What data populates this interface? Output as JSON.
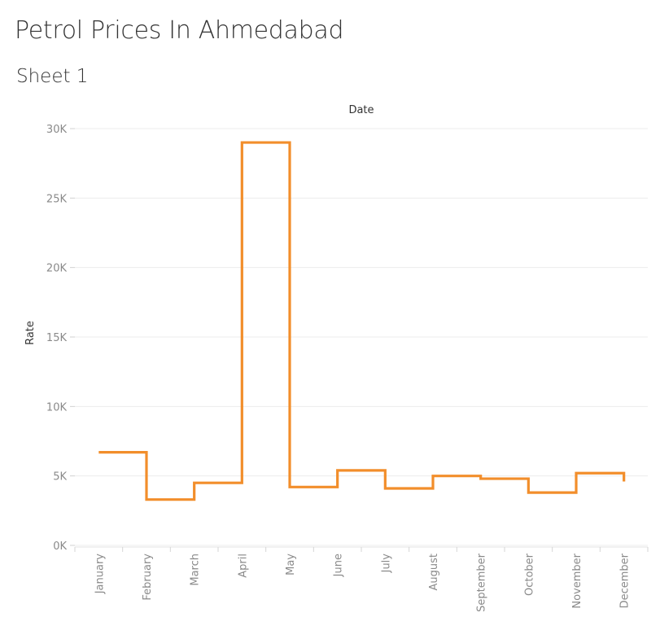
{
  "page": {
    "title": "Petrol Prices In Ahmedabad",
    "sheet": "Sheet 1"
  },
  "chart_data": {
    "type": "line",
    "line_style": "step",
    "categories": [
      "January",
      "February",
      "March",
      "April",
      "May",
      "June",
      "July",
      "August",
      "September",
      "October",
      "November",
      "December"
    ],
    "values": [
      6700,
      3300,
      4500,
      29000,
      4200,
      5400,
      4100,
      5000,
      4800,
      3800,
      5200,
      4600
    ],
    "xlabel": "Date",
    "ylabel": "Rate",
    "ylim": [
      0,
      30000
    ],
    "yticks": [
      0,
      5000,
      10000,
      15000,
      20000,
      25000,
      30000
    ],
    "ytick_labels": [
      "0K",
      "5K",
      "10K",
      "15K",
      "20K",
      "25K",
      "30K"
    ],
    "grid": true,
    "line_color": "#F28E2B"
  }
}
